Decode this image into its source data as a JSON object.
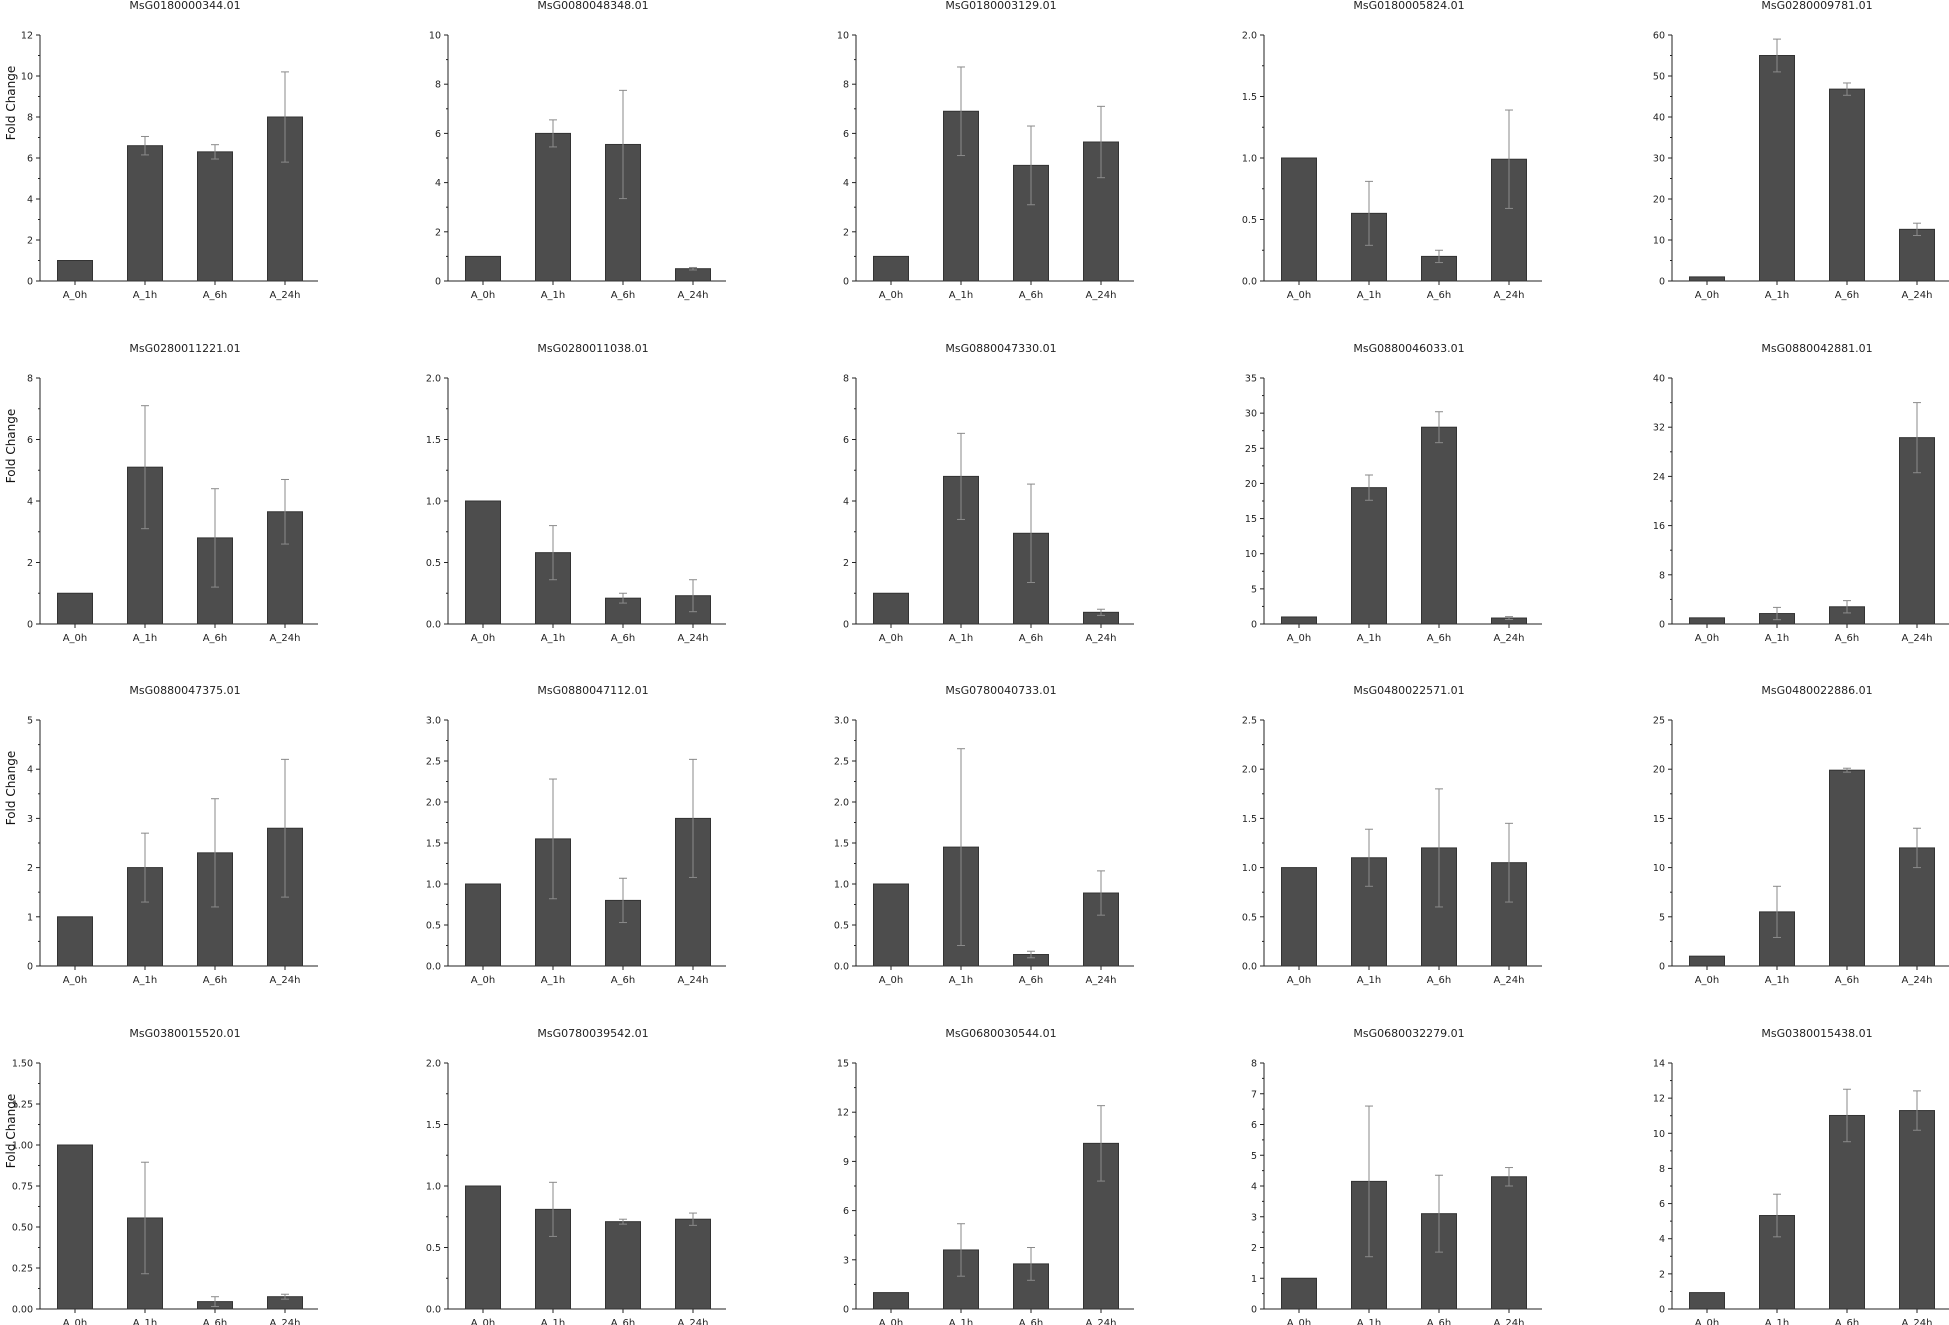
{
  "figure": {
    "ylabel": "Fold Change"
  },
  "chart_data": [
    {
      "type": "bar",
      "title": "MsG0180000344.01",
      "categories": [
        "A_0h",
        "A_1h",
        "A_6h",
        "A_24h"
      ],
      "values": [
        1.0,
        6.6,
        6.3,
        8.0
      ],
      "errors": [
        0.0,
        0.45,
        0.35,
        2.2
      ],
      "ylabel": "Fold Change",
      "ylim": [
        0,
        12
      ],
      "yticks": [
        "0",
        "2",
        "4",
        "6",
        "8",
        "10",
        "12"
      ]
    },
    {
      "type": "bar",
      "title": "MsG0080048348.01",
      "categories": [
        "A_0h",
        "A_1h",
        "A_6h",
        "A_24h"
      ],
      "values": [
        1.0,
        6.0,
        5.55,
        0.5
      ],
      "errors": [
        0.0,
        0.55,
        2.2,
        0.05
      ],
      "ylim": [
        0,
        10
      ],
      "yticks": [
        "0",
        "2",
        "4",
        "6",
        "8",
        "10"
      ]
    },
    {
      "type": "bar",
      "title": "MsG0180003129.01",
      "categories": [
        "A_0h",
        "A_1h",
        "A_6h",
        "A_24h"
      ],
      "values": [
        1.0,
        6.9,
        4.7,
        5.65
      ],
      "errors": [
        0.0,
        1.8,
        1.6,
        1.45
      ],
      "ylim": [
        0,
        10
      ],
      "yticks": [
        "0",
        "2",
        "4",
        "6",
        "8",
        "10"
      ]
    },
    {
      "type": "bar",
      "title": "MsG0180005824.01",
      "categories": [
        "A_0h",
        "A_1h",
        "A_6h",
        "A_24h"
      ],
      "values": [
        1.0,
        0.55,
        0.2,
        0.99
      ],
      "errors": [
        0.0,
        0.26,
        0.05,
        0.4
      ],
      "ylim": [
        0,
        2.0
      ],
      "yticks": [
        "0.0",
        "0.5",
        "1.0",
        "1.5",
        "2.0"
      ]
    },
    {
      "type": "bar",
      "title": "MsG0280009781.01",
      "categories": [
        "A_0h",
        "A_1h",
        "A_6h",
        "A_24h"
      ],
      "values": [
        1.0,
        55.0,
        46.8,
        12.6
      ],
      "errors": [
        0.0,
        4.0,
        1.5,
        1.5
      ],
      "ylim": [
        0,
        60
      ],
      "yticks": [
        "0",
        "10",
        "20",
        "30",
        "40",
        "50",
        "60"
      ]
    },
    {
      "type": "bar",
      "title": "MsG0280011221.01",
      "categories": [
        "A_0h",
        "A_1h",
        "A_6h",
        "A_24h"
      ],
      "values": [
        1.0,
        5.1,
        2.8,
        3.65
      ],
      "errors": [
        0.0,
        2.0,
        1.6,
        1.05
      ],
      "ylabel": "Fold Change",
      "ylim": [
        0,
        8
      ],
      "yticks": [
        "0",
        "2",
        "4",
        "6",
        "8"
      ]
    },
    {
      "type": "bar",
      "title": "MsG0280011038.01",
      "categories": [
        "A_0h",
        "A_1h",
        "A_6h",
        "A_24h"
      ],
      "values": [
        1.0,
        0.58,
        0.21,
        0.23
      ],
      "errors": [
        0.0,
        0.22,
        0.04,
        0.13
      ],
      "ylim": [
        0,
        2.0
      ],
      "yticks": [
        "0.0",
        "0.5",
        "1.0",
        "1.5",
        "2.0"
      ]
    },
    {
      "type": "bar",
      "title": "MsG0880047330.01",
      "categories": [
        "A_0h",
        "A_1h",
        "A_6h",
        "A_24h"
      ],
      "values": [
        1.0,
        4.8,
        2.95,
        0.38
      ],
      "errors": [
        0.0,
        1.4,
        1.6,
        0.1
      ],
      "ylim": [
        0,
        8
      ],
      "yticks": [
        "0",
        "2",
        "4",
        "6",
        "8"
      ]
    },
    {
      "type": "bar",
      "title": "MsG0880046033.01",
      "categories": [
        "A_0h",
        "A_1h",
        "A_6h",
        "A_24h"
      ],
      "values": [
        1.0,
        19.4,
        28.0,
        0.85
      ],
      "errors": [
        0.0,
        1.8,
        2.2,
        0.2
      ],
      "ylim": [
        0,
        35
      ],
      "yticks": [
        "0",
        "5",
        "10",
        "15",
        "20",
        "25",
        "30",
        "35"
      ]
    },
    {
      "type": "bar",
      "title": "MsG0880042881.01",
      "categories": [
        "A_0h",
        "A_1h",
        "A_6h",
        "A_24h"
      ],
      "values": [
        1.0,
        1.7,
        2.8,
        30.3
      ],
      "errors": [
        0.0,
        1.0,
        1.0,
        5.7
      ],
      "ylim": [
        0,
        40
      ],
      "yticks": [
        "0",
        "8",
        "16",
        "24",
        "32",
        "40"
      ]
    },
    {
      "type": "bar",
      "title": "MsG0880047375.01",
      "categories": [
        "A_0h",
        "A_1h",
        "A_6h",
        "A_24h"
      ],
      "values": [
        1.0,
        2.0,
        2.3,
        2.8
      ],
      "errors": [
        0.0,
        0.7,
        1.1,
        1.4
      ],
      "ylabel": "Fold Change",
      "ylim": [
        0,
        5
      ],
      "yticks": [
        "0",
        "1",
        "2",
        "3",
        "4",
        "5"
      ]
    },
    {
      "type": "bar",
      "title": "MsG0880047112.01",
      "categories": [
        "A_0h",
        "A_1h",
        "A_6h",
        "A_24h"
      ],
      "values": [
        1.0,
        1.55,
        0.8,
        1.8
      ],
      "errors": [
        0.0,
        0.73,
        0.27,
        0.72
      ],
      "ylim": [
        0,
        3.0
      ],
      "yticks": [
        "0.0",
        "0.5",
        "1.0",
        "1.5",
        "2.0",
        "2.5",
        "3.0"
      ]
    },
    {
      "type": "bar",
      "title": "MsG0780040733.01",
      "categories": [
        "A_0h",
        "A_1h",
        "A_6h",
        "A_24h"
      ],
      "values": [
        1.0,
        1.45,
        0.14,
        0.89
      ],
      "errors": [
        0.0,
        1.2,
        0.04,
        0.27
      ],
      "ylim": [
        0,
        3.0
      ],
      "yticks": [
        "0.0",
        "0.5",
        "1.0",
        "1.5",
        "2.0",
        "2.5",
        "3.0"
      ]
    },
    {
      "type": "bar",
      "title": "MsG0480022571.01",
      "categories": [
        "A_0h",
        "A_1h",
        "A_6h",
        "A_24h"
      ],
      "values": [
        1.0,
        1.1,
        1.2,
        1.05
      ],
      "errors": [
        0.0,
        0.29,
        0.6,
        0.4
      ],
      "ylim": [
        0,
        2.5
      ],
      "yticks": [
        "0.0",
        "0.5",
        "1.0",
        "1.5",
        "2.0",
        "2.5"
      ]
    },
    {
      "type": "bar",
      "title": "MsG0480022886.01",
      "categories": [
        "A_0h",
        "A_1h",
        "A_6h",
        "A_24h"
      ],
      "values": [
        1.0,
        5.5,
        19.9,
        12.0
      ],
      "errors": [
        0.0,
        2.6,
        0.2,
        2.0
      ],
      "ylim": [
        0,
        25
      ],
      "yticks": [
        "0",
        "5",
        "10",
        "15",
        "20",
        "25"
      ]
    },
    {
      "type": "bar",
      "title": "MsG0380015520.01",
      "categories": [
        "A_0h",
        "A_1h",
        "A_6h",
        "A_24h"
      ],
      "values": [
        1.0,
        0.555,
        0.045,
        0.075
      ],
      "errors": [
        0.0,
        0.34,
        0.03,
        0.015
      ],
      "ylabel": "Fold Change",
      "ylim": [
        0,
        1.5
      ],
      "yticks": [
        "0.00",
        "0.25",
        "0.50",
        "0.75",
        "1.00",
        "1.25",
        "1.50"
      ]
    },
    {
      "type": "bar",
      "title": "MsG0780039542.01",
      "categories": [
        "A_0h",
        "A_1h",
        "A_6h",
        "A_24h"
      ],
      "values": [
        1.0,
        0.81,
        0.71,
        0.73
      ],
      "errors": [
        0.0,
        0.22,
        0.02,
        0.05
      ],
      "ylim": [
        0,
        2.0
      ],
      "yticks": [
        "0.0",
        "0.5",
        "1.0",
        "1.5",
        "2.0"
      ]
    },
    {
      "type": "bar",
      "title": "MsG0680030544.01",
      "categories": [
        "A_0h",
        "A_1h",
        "A_6h",
        "A_24h"
      ],
      "values": [
        1.0,
        3.6,
        2.75,
        10.1
      ],
      "errors": [
        0.0,
        1.6,
        1.0,
        2.3
      ],
      "ylim": [
        0,
        15
      ],
      "yticks": [
        "0",
        "3",
        "6",
        "9",
        "12",
        "15"
      ]
    },
    {
      "type": "bar",
      "title": "MsG0680032279.01",
      "categories": [
        "A_0h",
        "A_1h",
        "A_6h",
        "A_24h"
      ],
      "values": [
        1.0,
        4.15,
        3.1,
        4.3
      ],
      "errors": [
        0.0,
        2.45,
        1.25,
        0.3
      ],
      "ylim": [
        0,
        8
      ],
      "yticks": [
        "0",
        "1",
        "2",
        "3",
        "4",
        "5",
        "6",
        "7",
        "8"
      ]
    },
    {
      "type": "bar",
      "title": "MsG0380015438.01",
      "categories": [
        "A_0h",
        "A_1h",
        "A_6h",
        "A_24h"
      ],
      "values": [
        1.0,
        5.7,
        11.8,
        12.1
      ],
      "errors": [
        0.0,
        1.3,
        1.6,
        1.2
      ],
      "ylim": [
        0,
        15
      ],
      "yticks": [
        "0",
        "2",
        "4",
        "6",
        "8",
        "10",
        "12",
        "14"
      ]
    }
  ]
}
